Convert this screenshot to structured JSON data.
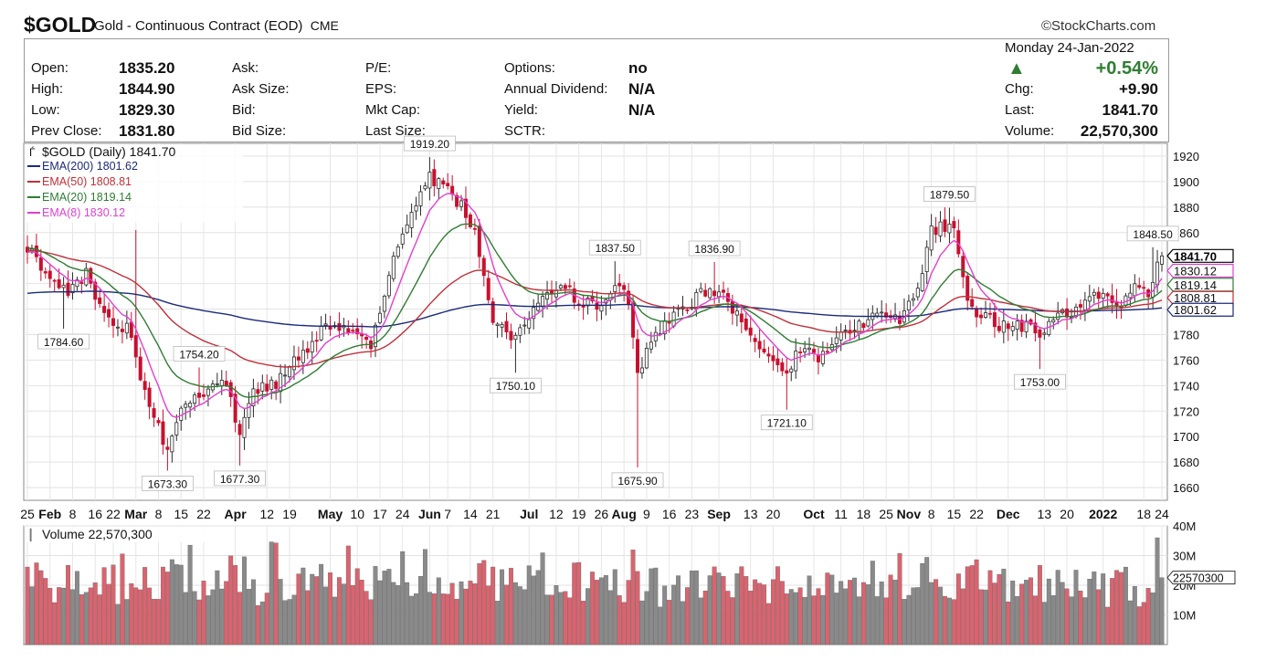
{
  "header": {
    "symbol": "$GOLD",
    "name": "Gold - Continuous Contract (EOD)",
    "exchange": "CME",
    "source": "©StockCharts.com",
    "date": "Monday  24-Jan-2022",
    "change_pct": "+0.54%",
    "up_arrow": "▲"
  },
  "quote": {
    "col1": [
      [
        "Open:",
        "1835.20"
      ],
      [
        "High:",
        "1844.90"
      ],
      [
        "Low:",
        "1829.30"
      ],
      [
        "Prev Close:",
        "1831.80"
      ]
    ],
    "col2": [
      "Ask:",
      "Ask Size:",
      "Bid:",
      "Bid Size:"
    ],
    "col3": [
      "P/E:",
      "EPS:",
      "Mkt Cap:",
      "Last Size:"
    ],
    "col4": [
      [
        "Options:",
        "no"
      ],
      [
        "Annual Dividend:",
        "N/A"
      ],
      [
        "Yield:",
        "N/A"
      ],
      [
        "SCTR:",
        ""
      ]
    ],
    "col5": [
      [
        "Chg:",
        "+9.90"
      ],
      [
        "Last:",
        "1841.70"
      ],
      [
        "Volume:",
        "22,570,300"
      ]
    ]
  },
  "colors": {
    "up": "#2a2a2a",
    "down": "#c8102e",
    "ema200": "#1c2a7a",
    "ema50": "#c0303a",
    "ema20": "#2e7d32",
    "ema8": "#e040d0",
    "vol_up": "#8a8a8a",
    "vol_down": "#d9646f"
  },
  "chart_data": {
    "type": "line",
    "title": "$GOLD (Daily) 1841.70",
    "legend": [
      {
        "name": "EMA(200) 1801.62",
        "color": "#1c2a7a"
      },
      {
        "name": "EMA(50) 1808.81",
        "color": "#c0303a"
      },
      {
        "name": "EMA(20) 1819.14",
        "color": "#2e7d32"
      },
      {
        "name": "EMA(8) 1830.12",
        "color": "#e040d0"
      }
    ],
    "ylim": [
      1650,
      1930
    ],
    "yticks": [
      1660,
      1680,
      1700,
      1720,
      1740,
      1760,
      1780,
      1800,
      1820,
      1840,
      1860,
      1880,
      1900,
      1920
    ],
    "x_tick_labels": [
      {
        "t": "25",
        "i": 0
      },
      {
        "t": "Feb",
        "i": 5,
        "bold": true
      },
      {
        "t": "8",
        "i": 10
      },
      {
        "t": "16",
        "i": 15
      },
      {
        "t": "22",
        "i": 19
      },
      {
        "t": "Mar",
        "i": 24,
        "bold": true
      },
      {
        "t": "8",
        "i": 29
      },
      {
        "t": "15",
        "i": 34
      },
      {
        "t": "22",
        "i": 39
      },
      {
        "t": "Apr",
        "i": 46,
        "bold": true
      },
      {
        "t": "12",
        "i": 53
      },
      {
        "t": "19",
        "i": 58
      },
      {
        "t": "May",
        "i": 67,
        "bold": true
      },
      {
        "t": "10",
        "i": 73
      },
      {
        "t": "17",
        "i": 78
      },
      {
        "t": "24",
        "i": 83
      },
      {
        "t": "Jun",
        "i": 89,
        "bold": true
      },
      {
        "t": "7",
        "i": 93
      },
      {
        "t": "14",
        "i": 98
      },
      {
        "t": "21",
        "i": 103
      },
      {
        "t": "Jul",
        "i": 111,
        "bold": true
      },
      {
        "t": "12",
        "i": 117
      },
      {
        "t": "19",
        "i": 122
      },
      {
        "t": "26",
        "i": 127
      },
      {
        "t": "Aug",
        "i": 132,
        "bold": true
      },
      {
        "t": "9",
        "i": 137
      },
      {
        "t": "16",
        "i": 142
      },
      {
        "t": "23",
        "i": 147
      },
      {
        "t": "Sep",
        "i": 153,
        "bold": true
      },
      {
        "t": "13",
        "i": 160
      },
      {
        "t": "20",
        "i": 165
      },
      {
        "t": "Oct",
        "i": 174,
        "bold": true
      },
      {
        "t": "11",
        "i": 180
      },
      {
        "t": "18",
        "i": 185
      },
      {
        "t": "25",
        "i": 190
      },
      {
        "t": "Nov",
        "i": 195,
        "bold": true
      },
      {
        "t": "8",
        "i": 200
      },
      {
        "t": "15",
        "i": 205
      },
      {
        "t": "22",
        "i": 210
      },
      {
        "t": "Dec",
        "i": 217,
        "bold": true
      },
      {
        "t": "13",
        "i": 225
      },
      {
        "t": "20",
        "i": 230
      },
      {
        "t": "2022",
        "i": 238,
        "bold": true
      },
      {
        "t": "18",
        "i": 247
      },
      {
        "t": "24",
        "i": 251
      }
    ],
    "anchors": [
      [
        0,
        1845
      ],
      [
        4,
        1832
      ],
      [
        9,
        1812
      ],
      [
        13,
        1828
      ],
      [
        18,
        1790
      ],
      [
        22,
        1785
      ],
      [
        27,
        1726
      ],
      [
        31,
        1690
      ],
      [
        35,
        1729
      ],
      [
        40,
        1738
      ],
      [
        44,
        1740
      ],
      [
        47,
        1700
      ],
      [
        50,
        1736
      ],
      [
        55,
        1742
      ],
      [
        60,
        1763
      ],
      [
        64,
        1780
      ],
      [
        68,
        1790
      ],
      [
        72,
        1782
      ],
      [
        76,
        1770
      ],
      [
        81,
        1840
      ],
      [
        85,
        1880
      ],
      [
        89,
        1902
      ],
      [
        92,
        1898
      ],
      [
        96,
        1880
      ],
      [
        99,
        1862
      ],
      [
        103,
        1790
      ],
      [
        108,
        1778
      ],
      [
        111,
        1795
      ],
      [
        114,
        1810
      ],
      [
        118,
        1818
      ],
      [
        122,
        1808
      ],
      [
        126,
        1800
      ],
      [
        130,
        1822
      ],
      [
        133,
        1804
      ],
      [
        135,
        1745
      ],
      [
        137,
        1765
      ],
      [
        140,
        1782
      ],
      [
        143,
        1796
      ],
      [
        147,
        1805
      ],
      [
        151,
        1818
      ],
      [
        154,
        1808
      ],
      [
        158,
        1795
      ],
      [
        162,
        1765
      ],
      [
        165,
        1760
      ],
      [
        168,
        1750
      ],
      [
        171,
        1770
      ],
      [
        175,
        1762
      ],
      [
        178,
        1776
      ],
      [
        181,
        1783
      ],
      [
        185,
        1790
      ],
      [
        189,
        1800
      ],
      [
        193,
        1790
      ],
      [
        197,
        1820
      ],
      [
        200,
        1860
      ],
      [
        203,
        1866
      ],
      [
        205,
        1860
      ],
      [
        207,
        1820
      ],
      [
        210,
        1796
      ],
      [
        214,
        1790
      ],
      [
        217,
        1784
      ],
      [
        221,
        1788
      ],
      [
        224,
        1780
      ],
      [
        227,
        1792
      ],
      [
        231,
        1798
      ],
      [
        235,
        1806
      ],
      [
        239,
        1814
      ],
      [
        242,
        1798
      ],
      [
        245,
        1822
      ],
      [
        248,
        1814
      ],
      [
        251,
        1842
      ]
    ],
    "extremes": [
      {
        "i": 24,
        "kind": "high",
        "v": 1862
      },
      {
        "i": 8,
        "kind": "low",
        "v": 1784.6
      },
      {
        "i": 31,
        "kind": "low",
        "v": 1673.3
      },
      {
        "i": 47,
        "kind": "low",
        "v": 1677.3
      },
      {
        "i": 38,
        "kind": "high",
        "v": 1754.2
      },
      {
        "i": 89,
        "kind": "high",
        "v": 1919.2
      },
      {
        "i": 108,
        "kind": "low",
        "v": 1750.1
      },
      {
        "i": 130,
        "kind": "high",
        "v": 1837.5
      },
      {
        "i": 135,
        "kind": "low",
        "v": 1675.9
      },
      {
        "i": 152,
        "kind": "high",
        "v": 1836.9
      },
      {
        "i": 168,
        "kind": "low",
        "v": 1721.1
      },
      {
        "i": 204,
        "kind": "high",
        "v": 1879.5
      },
      {
        "i": 224,
        "kind": "low",
        "v": 1753.0
      },
      {
        "i": 249,
        "kind": "high",
        "v": 1848.5
      }
    ],
    "annotations": [
      {
        "label": "1784.60",
        "i": 8,
        "v": 1784.6,
        "pos": "below"
      },
      {
        "label": "1673.30",
        "i": 31,
        "v": 1673.3,
        "pos": "below"
      },
      {
        "label": "1754.20",
        "i": 38,
        "v": 1754.2,
        "pos": "above"
      },
      {
        "label": "1677.30",
        "i": 47,
        "v": 1677.3,
        "pos": "below"
      },
      {
        "label": "1919.20",
        "i": 89,
        "v": 1919.2,
        "pos": "above"
      },
      {
        "label": "1750.10",
        "i": 108,
        "v": 1750.1,
        "pos": "below"
      },
      {
        "label": "1837.50",
        "i": 130,
        "v": 1837.5,
        "pos": "above"
      },
      {
        "label": "1675.90",
        "i": 135,
        "v": 1675.9,
        "pos": "below"
      },
      {
        "label": "1836.90",
        "i": 152,
        "v": 1836.9,
        "pos": "above"
      },
      {
        "label": "1721.10",
        "i": 168,
        "v": 1721.1,
        "pos": "below"
      },
      {
        "label": "1879.50",
        "i": 204,
        "v": 1879.5,
        "pos": "above"
      },
      {
        "label": "1753.00",
        "i": 224,
        "v": 1753.0,
        "pos": "below"
      },
      {
        "label": "1848.50",
        "i": 249,
        "v": 1848.5,
        "pos": "above"
      }
    ],
    "last_values": [
      {
        "label": "1841.70",
        "v": 1841.7,
        "color": "#000000",
        "bold": true
      },
      {
        "label": "1830.12",
        "v": 1830.12,
        "color": "#e040d0"
      },
      {
        "label": "1819.14",
        "v": 1819.14,
        "color": "#2e7d32"
      },
      {
        "label": "1808.81",
        "v": 1808.81,
        "color": "#c0303a"
      },
      {
        "label": "1801.62",
        "v": 1801.62,
        "color": "#1c2a7a"
      }
    ],
    "volume": {
      "title": "Volume 22,570,300",
      "ylim": [
        0,
        40
      ],
      "yticks": [
        {
          "v": 10,
          "t": "10M"
        },
        {
          "v": 20,
          "t": "20M"
        },
        {
          "v": 30,
          "t": "30M"
        },
        {
          "v": 40,
          "t": "40M"
        }
      ],
      "last_label": "22570300",
      "last_value": 22.57
    }
  }
}
